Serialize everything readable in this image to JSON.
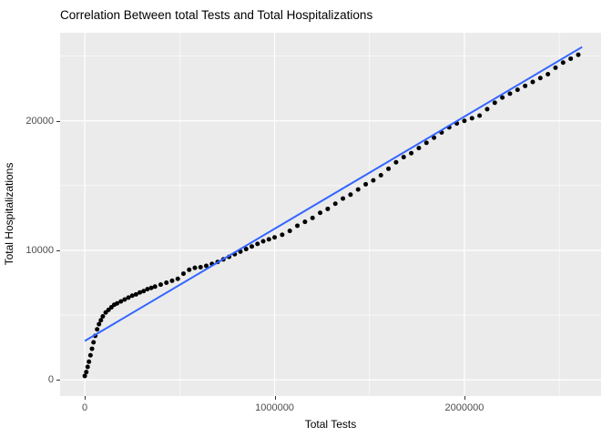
{
  "chart_data": {
    "type": "scatter",
    "title": "Correlation Between total Tests and Total Hospitalizations",
    "xlabel": "Total Tests",
    "ylabel": "Total Hospitalizations",
    "legend": "none",
    "grid": "on",
    "xlim": [
      -130000,
      2720000
    ],
    "ylim": [
      -1250,
      26800
    ],
    "x_ticks": [
      0,
      1000000,
      2000000
    ],
    "x_tick_labels": [
      "0",
      "1000000",
      "2000000"
    ],
    "y_ticks": [
      0,
      10000,
      20000
    ],
    "y_tick_labels": [
      "0",
      "10000",
      "20000"
    ],
    "x_minor_gridlines": [
      500000,
      1500000,
      2500000
    ],
    "y_minor_gridlines": [
      5000,
      15000,
      25000
    ],
    "colors": {
      "point": "#000000",
      "regression_line": "#3366FF",
      "panel_background": "#EBEBEB",
      "gridline": "#FFFFFF",
      "tick_label": "#4D4D4D",
      "axis_title": "#000000",
      "title": "#000000"
    },
    "regression_line": {
      "x1": 0,
      "y1": 3000,
      "x2": 2620000,
      "y2": 25700
    },
    "points": [
      [
        0,
        300
      ],
      [
        8000,
        600
      ],
      [
        15000,
        1000
      ],
      [
        22000,
        1400
      ],
      [
        30000,
        1900
      ],
      [
        38000,
        2400
      ],
      [
        46000,
        2900
      ],
      [
        55000,
        3400
      ],
      [
        65000,
        3900
      ],
      [
        75000,
        4300
      ],
      [
        85000,
        4600
      ],
      [
        95000,
        4900
      ],
      [
        110000,
        5200
      ],
      [
        125000,
        5400
      ],
      [
        140000,
        5600
      ],
      [
        155000,
        5800
      ],
      [
        170000,
        5900
      ],
      [
        190000,
        6050
      ],
      [
        210000,
        6200
      ],
      [
        230000,
        6350
      ],
      [
        250000,
        6500
      ],
      [
        270000,
        6600
      ],
      [
        290000,
        6750
      ],
      [
        310000,
        6850
      ],
      [
        330000,
        7000
      ],
      [
        350000,
        7100
      ],
      [
        370000,
        7200
      ],
      [
        400000,
        7350
      ],
      [
        430000,
        7500
      ],
      [
        460000,
        7650
      ],
      [
        490000,
        7800
      ],
      [
        520000,
        8200
      ],
      [
        550000,
        8500
      ],
      [
        580000,
        8650
      ],
      [
        610000,
        8700
      ],
      [
        640000,
        8800
      ],
      [
        670000,
        8950
      ],
      [
        700000,
        9100
      ],
      [
        730000,
        9300
      ],
      [
        760000,
        9500
      ],
      [
        790000,
        9700
      ],
      [
        820000,
        9900
      ],
      [
        850000,
        10100
      ],
      [
        880000,
        10300
      ],
      [
        910000,
        10500
      ],
      [
        940000,
        10700
      ],
      [
        970000,
        10850
      ],
      [
        1000000,
        11000
      ],
      [
        1040000,
        11200
      ],
      [
        1080000,
        11500
      ],
      [
        1120000,
        11900
      ],
      [
        1160000,
        12200
      ],
      [
        1200000,
        12500
      ],
      [
        1240000,
        12900
      ],
      [
        1280000,
        13200
      ],
      [
        1320000,
        13600
      ],
      [
        1360000,
        14000
      ],
      [
        1400000,
        14300
      ],
      [
        1440000,
        14700
      ],
      [
        1480000,
        15100
      ],
      [
        1520000,
        15400
      ],
      [
        1560000,
        15800
      ],
      [
        1600000,
        16300
      ],
      [
        1640000,
        16800
      ],
      [
        1680000,
        17200
      ],
      [
        1720000,
        17500
      ],
      [
        1760000,
        17900
      ],
      [
        1800000,
        18300
      ],
      [
        1840000,
        18700
      ],
      [
        1880000,
        19100
      ],
      [
        1920000,
        19500
      ],
      [
        1960000,
        19800
      ],
      [
        2000000,
        20000
      ],
      [
        2040000,
        20200
      ],
      [
        2080000,
        20400
      ],
      [
        2120000,
        20900
      ],
      [
        2160000,
        21400
      ],
      [
        2200000,
        21800
      ],
      [
        2240000,
        22100
      ],
      [
        2280000,
        22400
      ],
      [
        2320000,
        22700
      ],
      [
        2360000,
        23000
      ],
      [
        2400000,
        23300
      ],
      [
        2440000,
        23600
      ],
      [
        2480000,
        24100
      ],
      [
        2520000,
        24500
      ],
      [
        2560000,
        24800
      ],
      [
        2600000,
        25100
      ]
    ]
  }
}
